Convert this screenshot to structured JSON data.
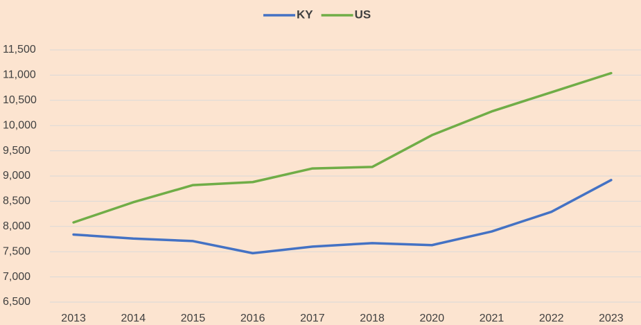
{
  "chart_data": {
    "type": "line",
    "categories": [
      "2013",
      "2014",
      "2015",
      "2016",
      "2017",
      "2018",
      "2020",
      "2021",
      "2022",
      "2023"
    ],
    "series": [
      {
        "name": "KY",
        "color": "#4472c4",
        "values": [
          7840,
          7760,
          7710,
          7470,
          7600,
          7670,
          7630,
          7900,
          8290,
          8920
        ]
      },
      {
        "name": "US",
        "color": "#70ad47",
        "values": [
          8080,
          8480,
          8820,
          8880,
          9150,
          9180,
          9810,
          10280,
          10660,
          11040
        ]
      }
    ],
    "ylim": [
      6500,
      11500
    ],
    "yticks": [
      {
        "value": 6500,
        "label": "6,500"
      },
      {
        "value": 7000,
        "label": "7,000"
      },
      {
        "value": 7500,
        "label": "7,500"
      },
      {
        "value": 8000,
        "label": "8,000"
      },
      {
        "value": 8500,
        "label": "8,500"
      },
      {
        "value": 9000,
        "label": "9,000"
      },
      {
        "value": 9500,
        "label": "9,500"
      },
      {
        "value": 10000,
        "label": "10,000"
      },
      {
        "value": 10500,
        "label": "10,500"
      },
      {
        "value": 11000,
        "label": "11,000"
      },
      {
        "value": 11500,
        "label": "11,500"
      }
    ],
    "grid": true,
    "legend": "top"
  }
}
